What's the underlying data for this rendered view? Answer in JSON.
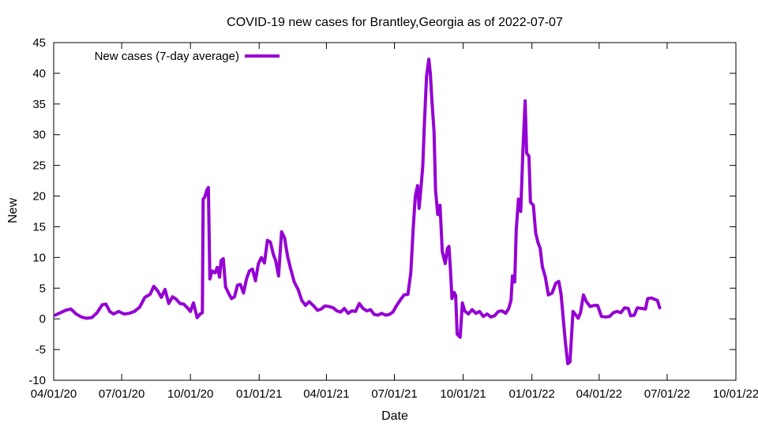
{
  "chart_data": {
    "type": "line",
    "title": "COVID-19 new cases for Brantley,Georgia as of 2022-07-07",
    "xlabel": "Date",
    "ylabel": "New",
    "xlim": [
      "2020-04-01",
      "2022-10-01"
    ],
    "ylim": [
      -10,
      45
    ],
    "y_ticks": [
      -10,
      -5,
      0,
      5,
      10,
      15,
      20,
      25,
      30,
      35,
      40,
      45
    ],
    "x_ticks": [
      "2020-04-01",
      "2020-07-01",
      "2020-10-01",
      "2021-01-01",
      "2021-04-01",
      "2021-07-01",
      "2021-10-01",
      "2022-01-01",
      "2022-04-01",
      "2022-07-01",
      "2022-10-01"
    ],
    "x_tick_labels": [
      "04/01/20",
      "07/01/20",
      "10/01/20",
      "01/01/21",
      "04/01/21",
      "07/01/21",
      "10/01/21",
      "01/01/22",
      "04/01/22",
      "07/01/22",
      "10/01/22"
    ],
    "grid": false,
    "legend_position": "top-left",
    "series": [
      {
        "name": "New cases (7-day average)",
        "color": "#9400d3",
        "points": [
          [
            "2020-04-03",
            0.6
          ],
          [
            "2020-04-10",
            1.0
          ],
          [
            "2020-04-17",
            1.4
          ],
          [
            "2020-04-24",
            1.6
          ],
          [
            "2020-05-01",
            0.8
          ],
          [
            "2020-05-08",
            0.3
          ],
          [
            "2020-05-15",
            0.1
          ],
          [
            "2020-05-22",
            0.2
          ],
          [
            "2020-05-29",
            1.0
          ],
          [
            "2020-06-05",
            2.3
          ],
          [
            "2020-06-10",
            2.4
          ],
          [
            "2020-06-15",
            1.2
          ],
          [
            "2020-06-20",
            0.8
          ],
          [
            "2020-06-27",
            1.2
          ],
          [
            "2020-07-04",
            0.8
          ],
          [
            "2020-07-11",
            0.9
          ],
          [
            "2020-07-18",
            1.2
          ],
          [
            "2020-07-25",
            1.9
          ],
          [
            "2020-08-01",
            3.5
          ],
          [
            "2020-08-08",
            4.0
          ],
          [
            "2020-08-13",
            5.3
          ],
          [
            "2020-08-18",
            4.6
          ],
          [
            "2020-08-23",
            3.5
          ],
          [
            "2020-08-28",
            4.8
          ],
          [
            "2020-09-02",
            2.5
          ],
          [
            "2020-09-07",
            3.6
          ],
          [
            "2020-09-12",
            3.2
          ],
          [
            "2020-09-17",
            2.5
          ],
          [
            "2020-09-22",
            2.4
          ],
          [
            "2020-09-27",
            1.8
          ],
          [
            "2020-10-01",
            1.2
          ],
          [
            "2020-10-05",
            2.6
          ],
          [
            "2020-10-10",
            0.2
          ],
          [
            "2020-10-14",
            0.8
          ],
          [
            "2020-10-17",
            1.0
          ],
          [
            "2020-10-18",
            19.5
          ],
          [
            "2020-10-20",
            19.8
          ],
          [
            "2020-10-23",
            21.0
          ],
          [
            "2020-10-25",
            21.4
          ],
          [
            "2020-10-27",
            6.5
          ],
          [
            "2020-10-30",
            7.8
          ],
          [
            "2020-11-03",
            7.5
          ],
          [
            "2020-11-06",
            8.4
          ],
          [
            "2020-11-09",
            6.8
          ],
          [
            "2020-11-11",
            9.5
          ],
          [
            "2020-11-14",
            9.8
          ],
          [
            "2020-11-17",
            5.2
          ],
          [
            "2020-11-21",
            4.2
          ],
          [
            "2020-11-25",
            3.3
          ],
          [
            "2020-11-29",
            3.6
          ],
          [
            "2020-12-03",
            5.5
          ],
          [
            "2020-12-07",
            5.6
          ],
          [
            "2020-12-11",
            4.2
          ],
          [
            "2020-12-15",
            6.5
          ],
          [
            "2020-12-19",
            7.8
          ],
          [
            "2020-12-23",
            8.1
          ],
          [
            "2020-12-27",
            6.2
          ],
          [
            "2020-12-31",
            9.0
          ],
          [
            "2021-01-04",
            10.0
          ],
          [
            "2021-01-08",
            9.1
          ],
          [
            "2021-01-12",
            12.8
          ],
          [
            "2021-01-16",
            12.5
          ],
          [
            "2021-01-20",
            10.5
          ],
          [
            "2021-01-23",
            9.5
          ],
          [
            "2021-01-27",
            7.0
          ],
          [
            "2021-01-31",
            14.2
          ],
          [
            "2021-02-04",
            13.2
          ],
          [
            "2021-02-08",
            10.2
          ],
          [
            "2021-02-12",
            8.2
          ],
          [
            "2021-02-17",
            6.0
          ],
          [
            "2021-02-22",
            4.8
          ],
          [
            "2021-02-27",
            3.0
          ],
          [
            "2021-03-04",
            2.2
          ],
          [
            "2021-03-09",
            2.8
          ],
          [
            "2021-03-15",
            2.1
          ],
          [
            "2021-03-20",
            1.4
          ],
          [
            "2021-03-25",
            1.6
          ],
          [
            "2021-03-30",
            2.1
          ],
          [
            "2021-04-05",
            2.0
          ],
          [
            "2021-04-10",
            1.8
          ],
          [
            "2021-04-15",
            1.3
          ],
          [
            "2021-04-20",
            1.1
          ],
          [
            "2021-04-25",
            1.7
          ],
          [
            "2021-04-30",
            0.9
          ],
          [
            "2021-05-05",
            1.3
          ],
          [
            "2021-05-10",
            1.2
          ],
          [
            "2021-05-15",
            2.5
          ],
          [
            "2021-05-20",
            1.7
          ],
          [
            "2021-05-25",
            1.3
          ],
          [
            "2021-05-30",
            1.5
          ],
          [
            "2021-06-04",
            0.7
          ],
          [
            "2021-06-09",
            0.6
          ],
          [
            "2021-06-14",
            0.9
          ],
          [
            "2021-06-19",
            0.6
          ],
          [
            "2021-06-24",
            0.7
          ],
          [
            "2021-06-29",
            1.1
          ],
          [
            "2021-07-04",
            2.2
          ],
          [
            "2021-07-09",
            3.1
          ],
          [
            "2021-07-14",
            3.9
          ],
          [
            "2021-07-19",
            4.0
          ],
          [
            "2021-07-23",
            7.5
          ],
          [
            "2021-07-26",
            14.5
          ],
          [
            "2021-07-29",
            20.0
          ],
          [
            "2021-08-01",
            21.7
          ],
          [
            "2021-08-03",
            18.0
          ],
          [
            "2021-08-06",
            22.0
          ],
          [
            "2021-08-08",
            25.0
          ],
          [
            "2021-08-10",
            31.5
          ],
          [
            "2021-08-13",
            39.5
          ],
          [
            "2021-08-16",
            42.3
          ],
          [
            "2021-08-18",
            40.0
          ],
          [
            "2021-08-20",
            36.0
          ],
          [
            "2021-08-23",
            30.5
          ],
          [
            "2021-08-25",
            21.0
          ],
          [
            "2021-08-28",
            17.0
          ],
          [
            "2021-08-31",
            18.5
          ],
          [
            "2021-09-03",
            11.0
          ],
          [
            "2021-09-07",
            9.0
          ],
          [
            "2021-09-10",
            11.5
          ],
          [
            "2021-09-12",
            11.8
          ],
          [
            "2021-09-14",
            8.0
          ],
          [
            "2021-09-16",
            3.3
          ],
          [
            "2021-09-19",
            4.3
          ],
          [
            "2021-09-21",
            3.8
          ],
          [
            "2021-09-23",
            -2.5
          ],
          [
            "2021-09-27",
            -3.0
          ],
          [
            "2021-09-30",
            2.6
          ],
          [
            "2021-10-03",
            1.3
          ],
          [
            "2021-10-08",
            0.8
          ],
          [
            "2021-10-13",
            1.5
          ],
          [
            "2021-10-18",
            0.9
          ],
          [
            "2021-10-23",
            1.2
          ],
          [
            "2021-10-28",
            0.4
          ],
          [
            "2021-11-02",
            0.8
          ],
          [
            "2021-11-07",
            0.3
          ],
          [
            "2021-11-12",
            0.5
          ],
          [
            "2021-11-17",
            1.2
          ],
          [
            "2021-11-22",
            1.3
          ],
          [
            "2021-11-27",
            0.9
          ],
          [
            "2021-12-01",
            1.7
          ],
          [
            "2021-12-04",
            3.0
          ],
          [
            "2021-12-06",
            7.0
          ],
          [
            "2021-12-09",
            6.0
          ],
          [
            "2021-12-11",
            14.5
          ],
          [
            "2021-12-14",
            19.5
          ],
          [
            "2021-12-17",
            17.5
          ],
          [
            "2021-12-20",
            27.5
          ],
          [
            "2021-12-23",
            35.5
          ],
          [
            "2021-12-25",
            27.0
          ],
          [
            "2021-12-28",
            26.5
          ],
          [
            "2021-12-30",
            19.0
          ],
          [
            "2022-01-03",
            18.5
          ],
          [
            "2022-01-06",
            14.0
          ],
          [
            "2022-01-09",
            12.5
          ],
          [
            "2022-01-12",
            11.5
          ],
          [
            "2022-01-15",
            8.5
          ],
          [
            "2022-01-19",
            6.8
          ],
          [
            "2022-01-23",
            3.9
          ],
          [
            "2022-01-28",
            4.2
          ],
          [
            "2022-02-02",
            5.8
          ],
          [
            "2022-02-06",
            6.1
          ],
          [
            "2022-02-09",
            4.0
          ],
          [
            "2022-02-12",
            0.0
          ],
          [
            "2022-02-15",
            -4.0
          ],
          [
            "2022-02-18",
            -7.3
          ],
          [
            "2022-02-21",
            -7.0
          ],
          [
            "2022-02-25",
            1.2
          ],
          [
            "2022-03-01",
            0.6
          ],
          [
            "2022-03-04",
            0.1
          ],
          [
            "2022-03-07",
            1.0
          ],
          [
            "2022-03-11",
            3.9
          ],
          [
            "2022-03-15",
            2.8
          ],
          [
            "2022-03-20",
            2.0
          ],
          [
            "2022-03-25",
            2.2
          ],
          [
            "2022-03-30",
            2.2
          ],
          [
            "2022-04-04",
            0.4
          ],
          [
            "2022-04-10",
            0.3
          ],
          [
            "2022-04-15",
            0.4
          ],
          [
            "2022-04-20",
            1.0
          ],
          [
            "2022-04-25",
            1.2
          ],
          [
            "2022-04-30",
            1.0
          ],
          [
            "2022-05-05",
            1.8
          ],
          [
            "2022-05-10",
            1.7
          ],
          [
            "2022-05-13",
            0.5
          ],
          [
            "2022-05-18",
            0.6
          ],
          [
            "2022-05-22",
            1.8
          ],
          [
            "2022-05-28",
            1.7
          ],
          [
            "2022-06-02",
            1.6
          ],
          [
            "2022-06-05",
            3.3
          ],
          [
            "2022-06-10",
            3.4
          ],
          [
            "2022-06-14",
            3.2
          ],
          [
            "2022-06-18",
            3.0
          ],
          [
            "2022-06-21",
            1.8
          ]
        ]
      }
    ]
  }
}
